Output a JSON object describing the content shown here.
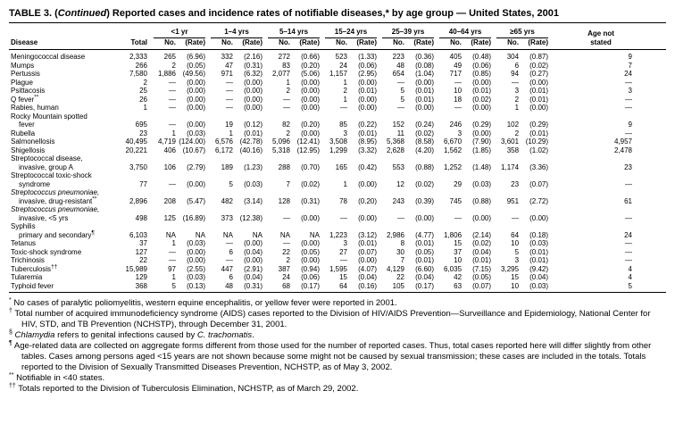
{
  "title": {
    "segments": [
      {
        "text": "TABLE 3. (",
        "italic": false
      },
      {
        "text": "Continued",
        "italic": true
      },
      {
        "text": ") Reported cases and incidence rates of notifiable diseases,* by age group — United States, 2001",
        "italic": false
      }
    ]
  },
  "table": {
    "headers": {
      "disease": "Disease",
      "total": "Total",
      "no": "No.",
      "rate": "(Rate)",
      "age_not_line1": "Age not",
      "age_not_line2": "stated"
    },
    "age_groups": [
      "<1 yr",
      "1–4 yrs",
      "5–14 yrs",
      "15–24 yrs",
      "25–39 yrs",
      "40–64 yrs",
      "≥65 yrs"
    ],
    "rows": [
      {
        "name": "Meningococcal disease",
        "total": "2,333",
        "cells": [
          "265",
          "(6.96)",
          "332",
          "(2.16)",
          "272",
          "(0.66)",
          "523",
          "(1.33)",
          "223",
          "(0.36)",
          "405",
          "(0.48)",
          "304",
          "(0.87)"
        ],
        "age_not_stated": "9"
      },
      {
        "name": "Mumps",
        "total": "266",
        "cells": [
          "2",
          "(0.05)",
          "47",
          "(0.31)",
          "83",
          "(0.20)",
          "24",
          "(0.06)",
          "48",
          "(0.08)",
          "49",
          "(0.06)",
          "6",
          "(0.02)"
        ],
        "age_not_stated": "7"
      },
      {
        "name": "Pertussis",
        "total": "7,580",
        "cells": [
          "1,886",
          "(49.56)",
          "971",
          "(6.32)",
          "2,077",
          "(5.06)",
          "1,157",
          "(2.95)",
          "654",
          "(1.04)",
          "717",
          "(0.85)",
          "94",
          "(0.27)"
        ],
        "age_not_stated": "24"
      },
      {
        "name": "Plague",
        "total": "2",
        "cells": [
          "—",
          "(0.00)",
          "—",
          "(0.00)",
          "1",
          "(0.00)",
          "1",
          "(0.00)",
          "—",
          "(0.00)",
          "—",
          "(0.00)",
          "—",
          "(0.00)"
        ],
        "age_not_stated": "—"
      },
      {
        "name": "Psittacosis",
        "total": "25",
        "cells": [
          "—",
          "(0.00)",
          "—",
          "(0.00)",
          "2",
          "(0.00)",
          "2",
          "(0.01)",
          "5",
          "(0.01)",
          "10",
          "(0.01)",
          "3",
          "(0.01)"
        ],
        "age_not_stated": "3"
      },
      {
        "name": "Q fever",
        "name_sup": "**",
        "total": "26",
        "cells": [
          "—",
          "(0.00)",
          "—",
          "(0.00)",
          "—",
          "(0.00)",
          "1",
          "(0.00)",
          "5",
          "(0.01)",
          "18",
          "(0.02)",
          "2",
          "(0.01)"
        ],
        "age_not_stated": "—"
      },
      {
        "name": "Rabies, human",
        "total": "1",
        "cells": [
          "—",
          "(0.00)",
          "—",
          "(0.00)",
          "—",
          "(0.00)",
          "—",
          "(0.00)",
          "—",
          "(0.00)",
          "—",
          "(0.00)",
          "1",
          "(0.00)"
        ],
        "age_not_stated": "—"
      },
      {
        "name": "Rocky Mountain spotted",
        "name_line2": "fever",
        "total": "695",
        "cells": [
          "—",
          "(0.00)",
          "19",
          "(0.12)",
          "82",
          "(0.20)",
          "85",
          "(0.22)",
          "152",
          "(0.24)",
          "246",
          "(0.29)",
          "102",
          "(0.29)"
        ],
        "age_not_stated": "9"
      },
      {
        "name": "Rubella",
        "total": "23",
        "cells": [
          "1",
          "(0.03)",
          "1",
          "(0.01)",
          "2",
          "(0.00)",
          "3",
          "(0.01)",
          "11",
          "(0.02)",
          "3",
          "(0.00)",
          "2",
          "(0.01)"
        ],
        "age_not_stated": "—"
      },
      {
        "name": "Salmonellosis",
        "total": "40,495",
        "cells": [
          "4,719",
          "(124.00)",
          "6,576",
          "(42.78)",
          "5,096",
          "(12.41)",
          "3,508",
          "(8.95)",
          "5,368",
          "(8.58)",
          "6,670",
          "(7.90)",
          "3,601",
          "(10.29)"
        ],
        "age_not_stated": "4,957"
      },
      {
        "name": "Shigellosis",
        "total": "20,221",
        "cells": [
          "406",
          "(10.67)",
          "6,172",
          "(40.16)",
          "5,318",
          "(12.95)",
          "1,299",
          "(3.32)",
          "2,628",
          "(4.20)",
          "1,562",
          "(1.85)",
          "358",
          "(1.02)"
        ],
        "age_not_stated": "2,478"
      },
      {
        "name": "Streptococcal disease,",
        "name_line2": "invasive, group A",
        "total": "3,750",
        "cells": [
          "106",
          "(2.79)",
          "189",
          "(1.23)",
          "288",
          "(0.70)",
          "165",
          "(0.42)",
          "553",
          "(0.88)",
          "1,252",
          "(1.48)",
          "1,174",
          "(3.36)"
        ],
        "age_not_stated": "23"
      },
      {
        "name": "Streptococcal toxic-shock",
        "name_line2": "syndrome",
        "total": "77",
        "cells": [
          "—",
          "(0.00)",
          "5",
          "(0.03)",
          "7",
          "(0.02)",
          "1",
          "(0.00)",
          "12",
          "(0.02)",
          "29",
          "(0.03)",
          "23",
          "(0.07)"
        ],
        "age_not_stated": "—"
      },
      {
        "name": "Streptococcus pneumoniae,",
        "name_italic": true,
        "name_line2": "invasive, drug-resistant",
        "line2_sup": "**",
        "total": "2,896",
        "cells": [
          "208",
          "(5.47)",
          "482",
          "(3.14)",
          "128",
          "(0.31)",
          "78",
          "(0.20)",
          "243",
          "(0.39)",
          "745",
          "(0.88)",
          "951",
          "(2.72)"
        ],
        "age_not_stated": "61"
      },
      {
        "name": "Streptococcus pneumoniae,",
        "name_italic": true,
        "name_line2": "invasive, <5 yrs",
        "total": "498",
        "cells": [
          "125",
          "(16.89)",
          "373",
          "(12.38)",
          "—",
          "(0.00)",
          "—",
          "(0.00)",
          "—",
          "(0.00)",
          "—",
          "(0.00)",
          "—",
          "(0.00)"
        ],
        "age_not_stated": "—"
      },
      {
        "name": "Syphilis",
        "name_line2": "primary and secondary",
        "line2_sup": "¶",
        "total": "6,103",
        "cells": [
          "NA",
          "NA",
          "NA",
          "NA",
          "NA",
          "NA",
          "1,223",
          "(3.12)",
          "2,986",
          "(4.77)",
          "1,806",
          "(2.14)",
          "64",
          "(0.18)"
        ],
        "age_not_stated": "24"
      },
      {
        "name": "Tetanus",
        "total": "37",
        "cells": [
          "1",
          "(0.03)",
          "—",
          "(0.00)",
          "—",
          "(0.00)",
          "3",
          "(0.01)",
          "8",
          "(0.01)",
          "15",
          "(0.02)",
          "10",
          "(0.03)"
        ],
        "age_not_stated": "—"
      },
      {
        "name": "Toxic-shock syndrome",
        "total": "127",
        "cells": [
          "—",
          "(0.00)",
          "6",
          "(0.04)",
          "22",
          "(0.05)",
          "27",
          "(0.07)",
          "30",
          "(0.05)",
          "37",
          "(0.04)",
          "5",
          "(0.01)"
        ],
        "age_not_stated": "—"
      },
      {
        "name": "Trichinosis",
        "total": "22",
        "cells": [
          "—",
          "(0.00)",
          "—",
          "(0.00)",
          "2",
          "(0.00)",
          "—",
          "(0.00)",
          "7",
          "(0.01)",
          "10",
          "(0.01)",
          "3",
          "(0.01)"
        ],
        "age_not_stated": "—"
      },
      {
        "name": "Tuberculosis",
        "name_sup": "††",
        "total": "15,989",
        "cells": [
          "97",
          "(2.55)",
          "447",
          "(2.91)",
          "387",
          "(0.94)",
          "1,595",
          "(4.07)",
          "4,129",
          "(6.60)",
          "6,035",
          "(7.15)",
          "3,295",
          "(9.42)"
        ],
        "age_not_stated": "4"
      },
      {
        "name": "Tularemia",
        "total": "129",
        "cells": [
          "1",
          "(0.03)",
          "6",
          "(0.04)",
          "24",
          "(0.06)",
          "15",
          "(0.04)",
          "22",
          "(0.04)",
          "42",
          "(0.05)",
          "15",
          "(0.04)"
        ],
        "age_not_stated": "4"
      },
      {
        "name": "Typhoid fever",
        "total": "368",
        "cells": [
          "5",
          "(0.13)",
          "48",
          "(0.31)",
          "68",
          "(0.17)",
          "64",
          "(0.16)",
          "105",
          "(0.17)",
          "63",
          "(0.07)",
          "10",
          "(0.03)"
        ],
        "age_not_stated": "5"
      }
    ]
  },
  "footnotes": [
    {
      "marker": "*",
      "segments": [
        {
          "text": "No cases of paralytic poliomyelitis, western equine encephalitis, or yellow fever were reported in 2001."
        }
      ]
    },
    {
      "marker": "†",
      "segments": [
        {
          "text": "Total number of acquired immunodeficiency syndrome (AIDS) cases reported to the Division of HIV/AIDS Prevention—Surveillance and Epidemiology, National Center for HIV, STD, and TB Prevention (NCHSTP), through December 31, 2001."
        }
      ]
    },
    {
      "marker": "§",
      "segments": [
        {
          "text": "Chlamydia",
          "italic": true
        },
        {
          "text": " refers to genital infections caused by "
        },
        {
          "text": "C. trachomatis",
          "italic": true
        },
        {
          "text": "."
        }
      ]
    },
    {
      "marker": "¶",
      "segments": [
        {
          "text": "Age-related data are collected on aggregate forms different from those used for the number of reported cases. Thus, total cases reported here will differ slightly from other tables. Cases among persons aged <15 years are not shown because some might not be caused by sexual transmission; these cases are included in the totals. Totals reported to the Division of Sexually Transmitted Diseases Prevention, NCHSTP, as of May 3, 2002."
        }
      ]
    },
    {
      "marker": "**",
      "segments": [
        {
          "text": "Notifiable in <40 states."
        }
      ]
    },
    {
      "marker": "††",
      "segments": [
        {
          "text": "Totals reported to the Division of Tuberculosis Elimination, NCHSTP, as of March 29, 2002."
        }
      ]
    }
  ]
}
